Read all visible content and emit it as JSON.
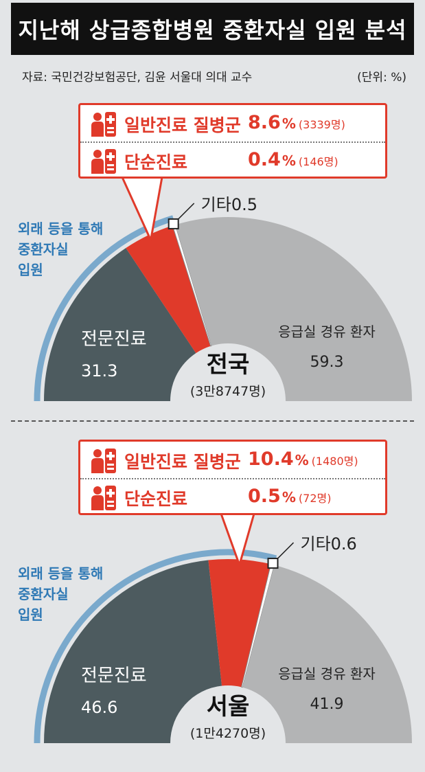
{
  "title": "지난해 상급종합병원 중환자실 입원 분석",
  "source": "자료: 국민건강보험공단, 김윤 서울대 의대 교수",
  "unit": "(단위: %)",
  "colors": {
    "specialist": "#4d5b5f",
    "referral": "#e03a2a",
    "emergency": "#b3b4b5",
    "other": "#ffffff",
    "arc": "#7aa9cc",
    "title_bg": "#111111"
  },
  "icons": {
    "callout": "hospital-bed-icon"
  },
  "chart_data": [
    {
      "type": "pie",
      "region": "전국",
      "total_label": "(3만8747명)",
      "slices": [
        {
          "label": "전문진료",
          "value": 31.3
        },
        {
          "label": "외래 등을 통해 중환자실 입원 (일반진료 질병군 + 단순진료)",
          "value": 9.0
        },
        {
          "label": "기타",
          "value": 0.5
        },
        {
          "label": "응급실 경유 환자",
          "value": 59.3
        }
      ],
      "labels": {
        "specialist": "전문진료",
        "specialist_value": "31.3",
        "emergency": "응급실 경유 환자",
        "emergency_value": "59.3",
        "other": "기타0.5",
        "arc": [
          "외래 등을 통해",
          "중환자실",
          "입원"
        ]
      },
      "callout": [
        {
          "label": "일반진료 질병군",
          "value": "8.6",
          "pct_sign": "%",
          "count": "(3339명)"
        },
        {
          "label": "단순진료",
          "value": "0.4",
          "pct_sign": "%",
          "count": "(146명)"
        }
      ]
    },
    {
      "type": "pie",
      "region": "서울",
      "total_label": "(1만4270명)",
      "slices": [
        {
          "label": "전문진료",
          "value": 46.6
        },
        {
          "label": "외래 등을 통해 중환자실 입원 (일반진료 질병군 + 단순진료)",
          "value": 10.9
        },
        {
          "label": "기타",
          "value": 0.6
        },
        {
          "label": "응급실 경유 환자",
          "value": 41.9
        }
      ],
      "labels": {
        "specialist": "전문진료",
        "specialist_value": "46.6",
        "emergency": "응급실 경유 환자",
        "emergency_value": "41.9",
        "other": "기타0.6",
        "arc": [
          "외래 등을 통해",
          "중환자실",
          "입원"
        ]
      },
      "callout": [
        {
          "label": "일반진료 질병군",
          "value": "10.4",
          "pct_sign": "%",
          "count": "(1480명)"
        },
        {
          "label": "단순진료",
          "value": "0.5",
          "pct_sign": "%",
          "count": "(72명)"
        }
      ]
    }
  ]
}
